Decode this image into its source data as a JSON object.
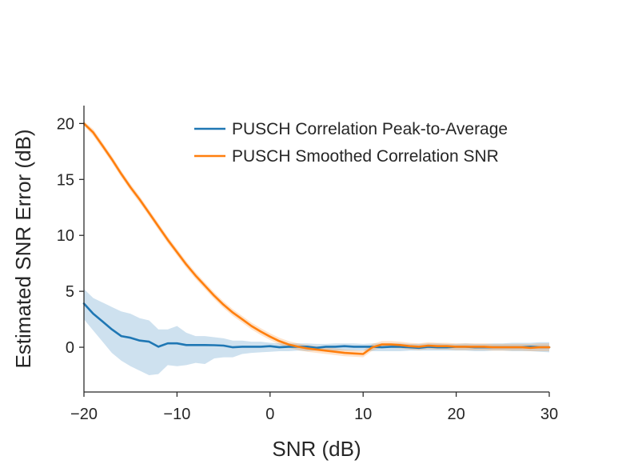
{
  "chart_data": {
    "type": "line",
    "title": "",
    "xlabel": "SNR (dB)",
    "ylabel": "Estimated SNR Error (dB)",
    "xlim": [
      -20,
      30
    ],
    "ylim": [
      -4,
      21.6
    ],
    "xticks": [
      -20,
      -10,
      0,
      10,
      20,
      30
    ],
    "yticks": [
      0,
      5,
      10,
      15,
      20
    ],
    "grid": false,
    "legend_position": "top-right",
    "series": [
      {
        "name": "PUSCH Correlation Peak-to-Average",
        "color": "#1f77b4",
        "x": [
          -20,
          -19,
          -18,
          -17,
          -16,
          -15,
          -14,
          -13,
          -12,
          -11,
          -10,
          -9,
          -8,
          -7,
          -6,
          -5,
          -4,
          -3,
          -2,
          -1,
          0,
          1,
          2,
          3,
          4,
          5,
          6,
          7,
          8,
          9,
          10,
          11,
          12,
          13,
          14,
          15,
          16,
          17,
          18,
          19,
          20,
          21,
          22,
          23,
          24,
          25,
          26,
          27,
          28,
          29,
          30
        ],
        "y": [
          3.9,
          3.0,
          2.3,
          1.6,
          1.0,
          0.85,
          0.6,
          0.5,
          0.05,
          0.35,
          0.35,
          0.2,
          0.2,
          0.2,
          0.18,
          0.15,
          0.0,
          0.05,
          0.05,
          0.05,
          0.1,
          0.0,
          0.05,
          0.05,
          0.05,
          -0.05,
          0.05,
          0.05,
          0.1,
          0.05,
          0.05,
          0.05,
          0.0,
          0.05,
          0.05,
          0.0,
          -0.05,
          0.05,
          0.0,
          0.0,
          0.05,
          0.05,
          0.0,
          0.0,
          0.0,
          0.0,
          0.0,
          0.0,
          0.05,
          0.0,
          0.0
        ],
        "band_lower": [
          2.5,
          1.5,
          0.5,
          -0.5,
          -1.2,
          -1.7,
          -2.1,
          -2.5,
          -2.4,
          -1.6,
          -1.7,
          -1.6,
          -1.4,
          -1.5,
          -1.0,
          -0.9,
          -0.9,
          -0.6,
          -0.5,
          -0.45,
          -0.4,
          -0.35,
          -0.35,
          -0.3,
          -0.35,
          -0.3,
          -0.3,
          -0.3,
          -0.3,
          -0.3,
          -0.3,
          -0.35,
          -0.35,
          -0.35,
          -0.35,
          -0.3,
          -0.3,
          -0.3,
          -0.3,
          -0.3,
          -0.3,
          -0.3,
          -0.35,
          -0.35,
          -0.3,
          -0.3,
          -0.35,
          -0.35,
          -0.35,
          -0.4,
          -0.45
        ],
        "band_upper": [
          5.2,
          4.4,
          4.0,
          3.6,
          3.2,
          3.0,
          2.6,
          2.4,
          1.6,
          1.6,
          1.9,
          1.3,
          1.0,
          1.0,
          0.9,
          0.8,
          0.6,
          0.6,
          0.5,
          0.5,
          0.4,
          0.35,
          0.35,
          0.35,
          0.35,
          0.3,
          0.3,
          0.35,
          0.35,
          0.35,
          0.3,
          0.35,
          0.35,
          0.35,
          0.35,
          0.3,
          0.3,
          0.35,
          0.35,
          0.3,
          0.3,
          0.35,
          0.3,
          0.3,
          0.35,
          0.35,
          0.4,
          0.4,
          0.4,
          0.45,
          0.45
        ]
      },
      {
        "name": "PUSCH Smoothed Correlation SNR",
        "color": "#ff7f0e",
        "x": [
          -20,
          -19,
          -18,
          -17,
          -16,
          -15,
          -14,
          -13,
          -12,
          -11,
          -10,
          -9,
          -8,
          -7,
          -6,
          -5,
          -4,
          -3,
          -2,
          -1,
          0,
          1,
          2,
          3,
          4,
          5,
          6,
          7,
          8,
          9,
          10,
          11,
          12,
          13,
          14,
          15,
          16,
          17,
          18,
          19,
          20,
          21,
          22,
          23,
          24,
          25,
          26,
          27,
          28,
          29,
          30
        ],
        "y": [
          20.0,
          19.2,
          18.0,
          16.8,
          15.5,
          14.3,
          13.2,
          12.0,
          10.8,
          9.6,
          8.5,
          7.4,
          6.4,
          5.5,
          4.6,
          3.8,
          3.1,
          2.5,
          1.9,
          1.4,
          0.95,
          0.55,
          0.25,
          0.05,
          -0.1,
          -0.2,
          -0.3,
          -0.4,
          -0.5,
          -0.55,
          -0.6,
          0.0,
          0.25,
          0.25,
          0.2,
          0.1,
          0.05,
          0.15,
          0.1,
          0.1,
          0.05,
          0.05,
          0.05,
          0.05,
          0.0,
          0.0,
          0.0,
          0.0,
          -0.05,
          0.0,
          0.0
        ],
        "band_lower": [
          19.8,
          18.9,
          17.7,
          16.5,
          15.2,
          14.0,
          12.9,
          11.7,
          10.5,
          9.3,
          8.2,
          7.1,
          6.1,
          5.2,
          4.3,
          3.5,
          2.8,
          2.2,
          1.6,
          1.1,
          0.65,
          0.25,
          -0.05,
          -0.25,
          -0.4,
          -0.5,
          -0.6,
          -0.7,
          -0.8,
          -0.85,
          -0.9,
          -0.3,
          -0.05,
          -0.05,
          -0.1,
          -0.2,
          -0.25,
          -0.15,
          -0.2,
          -0.2,
          -0.25,
          -0.25,
          -0.25,
          -0.25,
          -0.3,
          -0.3,
          -0.3,
          -0.3,
          -0.35,
          -0.35,
          -0.35
        ],
        "band_upper": [
          20.2,
          19.5,
          18.3,
          17.1,
          15.8,
          14.6,
          13.5,
          12.3,
          11.1,
          9.9,
          8.8,
          7.7,
          6.7,
          5.8,
          4.9,
          4.1,
          3.4,
          2.8,
          2.2,
          1.7,
          1.25,
          0.85,
          0.55,
          0.35,
          0.2,
          0.1,
          0.0,
          -0.1,
          -0.2,
          -0.25,
          -0.3,
          0.3,
          0.55,
          0.55,
          0.5,
          0.4,
          0.35,
          0.45,
          0.4,
          0.4,
          0.35,
          0.35,
          0.35,
          0.35,
          0.3,
          0.3,
          0.3,
          0.3,
          0.3,
          0.35,
          0.35
        ]
      }
    ]
  }
}
